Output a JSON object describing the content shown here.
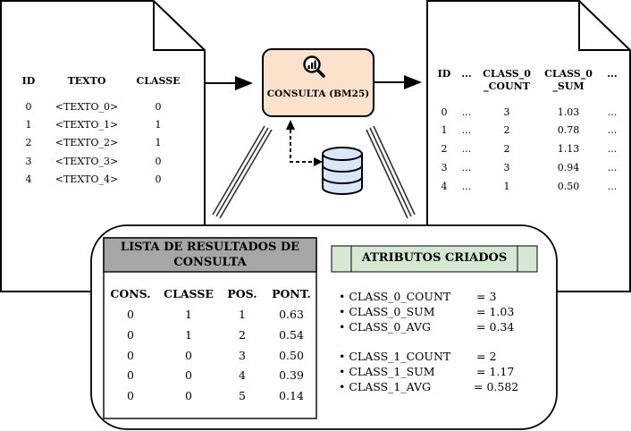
{
  "input_doc": {
    "headers": [
      "ID",
      "TEXTO",
      "CLASSE"
    ],
    "rows": [
      [
        "0",
        "<TEXTO_0>",
        "0"
      ],
      [
        "1",
        "<TEXTO_1>",
        "1"
      ],
      [
        "2",
        "<TEXTO_2>",
        "1"
      ],
      [
        "3",
        "<TEXTO_3>",
        "0"
      ],
      [
        "4",
        "<TEXTO_4>",
        "0"
      ]
    ]
  },
  "query": {
    "label": "CONSULTA (BM25)",
    "icon": "search-chart-icon",
    "fill": "#fde2cb",
    "stroke": "#000000",
    "database_icon": "database-icon",
    "database_color": "#d8e8f8"
  },
  "output_doc": {
    "headers": [
      "ID",
      "...",
      "CLASS_0\n_COUNT",
      "CLASS_0\n_SUM",
      "..."
    ],
    "rows": [
      [
        "0",
        "...",
        "3",
        "1.03",
        "..."
      ],
      [
        "1",
        "...",
        "2",
        "0.78",
        "..."
      ],
      [
        "2",
        "...",
        "2",
        "1.13",
        "..."
      ],
      [
        "3",
        "...",
        "3",
        "0.94",
        "..."
      ],
      [
        "4",
        "...",
        "1",
        "0.50",
        "..."
      ]
    ]
  },
  "results": {
    "title": "LISTA DE RESULTADOS DE CONSULTA",
    "title_fill": "#a6a6a6",
    "headers": [
      "CONS.",
      "CLASSE",
      "POS.",
      "PONT."
    ],
    "rows": [
      [
        "0",
        "1",
        "1",
        "0.63"
      ],
      [
        "0",
        "1",
        "2",
        "0.54"
      ],
      [
        "0",
        "0",
        "3",
        "0.50"
      ],
      [
        "0",
        "0",
        "4",
        "0.39"
      ],
      [
        "0",
        "0",
        "5",
        "0.14"
      ]
    ]
  },
  "attributes": {
    "title": "ATRIBUTOS CRIADOS",
    "title_fill": "#d5e8d4",
    "groups": [
      [
        {
          "name": "CLASS_0_COUNT",
          "value": "= 3"
        },
        {
          "name": "CLASS_0_SUM",
          "value": "= 1.03"
        },
        {
          "name": "CLASS_0_AVG",
          "value": "= 0.34"
        }
      ],
      [
        {
          "name": "CLASS_1_COUNT",
          "value": "= 2"
        },
        {
          "name": "CLASS_1_SUM",
          "value": "= 1.17"
        },
        {
          "name": "CLASS_1_AVG",
          "value": "= 0.582"
        }
      ]
    ]
  }
}
